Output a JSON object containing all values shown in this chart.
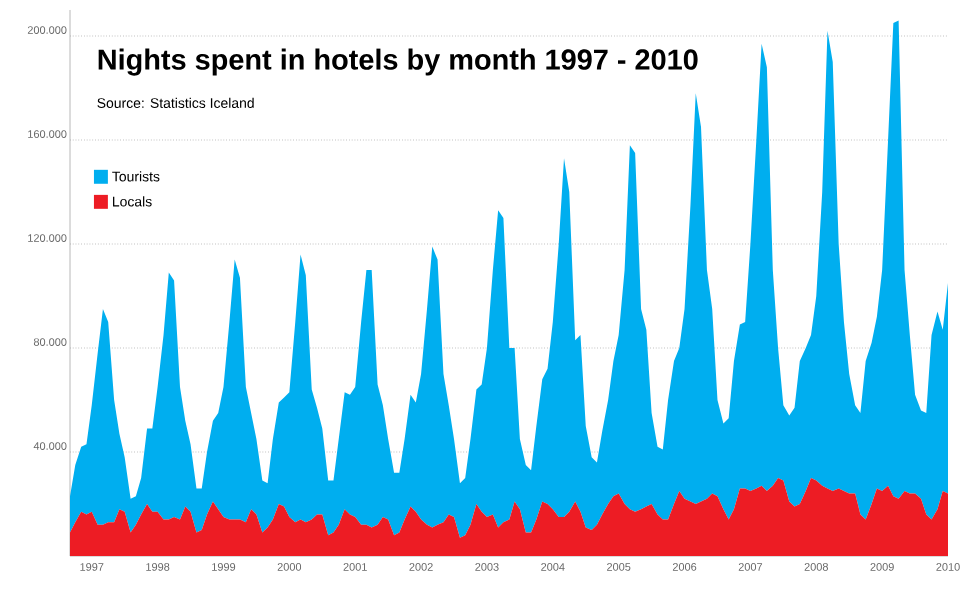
{
  "chart_data": {
    "type": "area",
    "stacked": true,
    "title": "Nights spent in hotels by month 1997 - 2010",
    "annotations": [
      "Source: Statistics Iceland"
    ],
    "x": [
      "1997-01",
      "1997-02",
      "1997-03",
      "1997-04",
      "1997-05",
      "1997-06",
      "1997-07",
      "1997-08",
      "1997-09",
      "1997-10",
      "1997-11",
      "1997-12",
      "1998-01",
      "1998-02",
      "1998-03",
      "1998-04",
      "1998-05",
      "1998-06",
      "1998-07",
      "1998-08",
      "1998-09",
      "1998-10",
      "1998-11",
      "1998-12",
      "1999-01",
      "1999-02",
      "1999-03",
      "1999-04",
      "1999-05",
      "1999-06",
      "1999-07",
      "1999-08",
      "1999-09",
      "1999-10",
      "1999-11",
      "1999-12",
      "2000-01",
      "2000-02",
      "2000-03",
      "2000-04",
      "2000-05",
      "2000-06",
      "2000-07",
      "2000-08",
      "2000-09",
      "2000-10",
      "2000-11",
      "2000-12",
      "2001-01",
      "2001-02",
      "2001-03",
      "2001-04",
      "2001-05",
      "2001-06",
      "2001-07",
      "2001-08",
      "2001-09",
      "2001-10",
      "2001-11",
      "2001-12",
      "2002-01",
      "2002-02",
      "2002-03",
      "2002-04",
      "2002-05",
      "2002-06",
      "2002-07",
      "2002-08",
      "2002-09",
      "2002-10",
      "2002-11",
      "2002-12",
      "2003-01",
      "2003-02",
      "2003-03",
      "2003-04",
      "2003-05",
      "2003-06",
      "2003-07",
      "2003-08",
      "2003-09",
      "2003-10",
      "2003-11",
      "2003-12",
      "2004-01",
      "2004-02",
      "2004-03",
      "2004-04",
      "2004-05",
      "2004-06",
      "2004-07",
      "2004-08",
      "2004-09",
      "2004-10",
      "2004-11",
      "2004-12",
      "2005-01",
      "2005-02",
      "2005-03",
      "2005-04",
      "2005-05",
      "2005-06",
      "2005-07",
      "2005-08",
      "2005-09",
      "2005-10",
      "2005-11",
      "2005-12",
      "2006-01",
      "2006-02",
      "2006-03",
      "2006-04",
      "2006-05",
      "2006-06",
      "2006-07",
      "2006-08",
      "2006-09",
      "2006-10",
      "2006-11",
      "2006-12",
      "2007-01",
      "2007-02",
      "2007-03",
      "2007-04",
      "2007-05",
      "2007-06",
      "2007-07",
      "2007-08",
      "2007-09",
      "2007-10",
      "2007-11",
      "2007-12",
      "2008-01",
      "2008-02",
      "2008-03",
      "2008-04",
      "2008-05",
      "2008-06",
      "2008-07",
      "2008-08",
      "2008-09",
      "2008-10",
      "2008-11",
      "2008-12",
      "2009-01",
      "2009-02",
      "2009-03",
      "2009-04",
      "2009-05",
      "2009-06",
      "2009-07",
      "2009-08",
      "2009-09",
      "2009-10",
      "2009-11",
      "2009-12",
      "2010-01",
      "2010-02",
      "2010-03",
      "2010-04",
      "2010-05"
    ],
    "series": [
      {
        "name": "Locals",
        "color": "#ed1c24",
        "values": [
          9000,
          13000,
          17000,
          16000,
          17000,
          12000,
          12000,
          13000,
          13000,
          18000,
          17000,
          9000,
          12000,
          16000,
          20000,
          17000,
          17000,
          14000,
          14000,
          15000,
          14000,
          19000,
          17000,
          9000,
          10000,
          16000,
          21000,
          18000,
          15000,
          14000,
          14000,
          14000,
          13000,
          18000,
          16000,
          9000,
          11000,
          14000,
          20000,
          19000,
          15000,
          13000,
          14000,
          13000,
          14000,
          16000,
          16000,
          8000,
          9000,
          12000,
          18000,
          16000,
          15000,
          12000,
          12000,
          11000,
          12000,
          15000,
          14000,
          8000,
          9000,
          14000,
          19000,
          17000,
          14000,
          12000,
          11000,
          12000,
          13000,
          16000,
          15000,
          7000,
          8000,
          12000,
          20000,
          17000,
          15000,
          16000,
          11000,
          13000,
          14000,
          21000,
          18000,
          9000,
          9000,
          14000,
          21000,
          20000,
          18000,
          15000,
          15000,
          17000,
          21000,
          17000,
          11000,
          10000,
          12000,
          16000,
          20000,
          23000,
          24000,
          20000,
          18000,
          17000,
          18000,
          19000,
          20000,
          16000,
          14000,
          14000,
          20000,
          25000,
          22000,
          21000,
          20000,
          21000,
          22000,
          24000,
          23000,
          18000,
          14000,
          18000,
          26000,
          26000,
          25000,
          26000,
          27000,
          25000,
          27000,
          30000,
          29000,
          21000,
          19000,
          20000,
          25000,
          30000,
          29000,
          27000,
          26000,
          25000,
          26000,
          25000,
          24000,
          24000,
          16000,
          14000,
          20000,
          26000,
          25000,
          27000,
          23000,
          22000,
          25000,
          24000,
          24000,
          22000,
          16000,
          14000,
          18000,
          25000,
          24000
        ]
      },
      {
        "name": "Tourists",
        "color": "#00aeef",
        "values": [
          14000,
          22000,
          25000,
          27000,
          41000,
          66000,
          83000,
          77000,
          47000,
          29000,
          21000,
          13000,
          11000,
          14000,
          29000,
          32000,
          48000,
          71000,
          95000,
          91000,
          51000,
          33000,
          26000,
          17000,
          16000,
          24000,
          31000,
          37000,
          50000,
          76000,
          100000,
          93000,
          52000,
          37000,
          29000,
          20000,
          17000,
          31000,
          39000,
          42000,
          48000,
          77000,
          102000,
          95000,
          50000,
          41000,
          33000,
          21000,
          20000,
          33000,
          45000,
          46000,
          50000,
          78000,
          98000,
          99000,
          54000,
          43000,
          31000,
          24000,
          23000,
          31000,
          43000,
          42000,
          56000,
          83000,
          108000,
          102000,
          57000,
          42000,
          30000,
          21000,
          22000,
          33000,
          44000,
          49000,
          65000,
          94000,
          122000,
          117000,
          66000,
          59000,
          27000,
          26000,
          24000,
          36000,
          47000,
          52000,
          72000,
          105000,
          138000,
          123000,
          62000,
          68000,
          39000,
          28000,
          24000,
          32000,
          40000,
          52000,
          61000,
          90000,
          140000,
          138000,
          77000,
          68000,
          35000,
          26000,
          27000,
          46000,
          55000,
          55000,
          73000,
          114000,
          158000,
          144000,
          88000,
          71000,
          37000,
          33000,
          39000,
          57000,
          63000,
          64000,
          95000,
          134000,
          170000,
          163000,
          83000,
          50000,
          29000,
          33000,
          38000,
          55000,
          55000,
          55000,
          71000,
          113000,
          176000,
          165000,
          94000,
          65000,
          46000,
          34000,
          39000,
          61000,
          62000,
          66000,
          85000,
          133000,
          182000,
          184000,
          85000,
          61000,
          38000,
          34000,
          39000,
          71000,
          76000,
          62000,
          81000
        ]
      }
    ],
    "xlim": [
      "1997-01",
      "2010-05"
    ],
    "xticks": [
      {
        "value": "1997-05",
        "label": "1997"
      },
      {
        "value": "1998-05",
        "label": "1998"
      },
      {
        "value": "1999-05",
        "label": "1999"
      },
      {
        "value": "2000-05",
        "label": "2000"
      },
      {
        "value": "2001-05",
        "label": "2001"
      },
      {
        "value": "2002-05",
        "label": "2002"
      },
      {
        "value": "2003-05",
        "label": "2003"
      },
      {
        "value": "2004-05",
        "label": "2004"
      },
      {
        "value": "2005-05",
        "label": "2005"
      },
      {
        "value": "2006-05",
        "label": "2006"
      },
      {
        "value": "2007-05",
        "label": "2007"
      },
      {
        "value": "2008-05",
        "label": "2008"
      },
      {
        "value": "2009-05",
        "label": "2009"
      },
      {
        "value": "2010-05",
        "label": "2010"
      }
    ],
    "ylim": [
      0,
      210000
    ],
    "yticks": [
      {
        "value": 40000,
        "label": "40.000"
      },
      {
        "value": 80000,
        "label": "80.000"
      },
      {
        "value": 120000,
        "label": "120.000"
      },
      {
        "value": 160000,
        "label": "160.000"
      },
      {
        "value": 200000,
        "label": "200.000"
      }
    ],
    "grid": "y",
    "legend": "top left"
  }
}
